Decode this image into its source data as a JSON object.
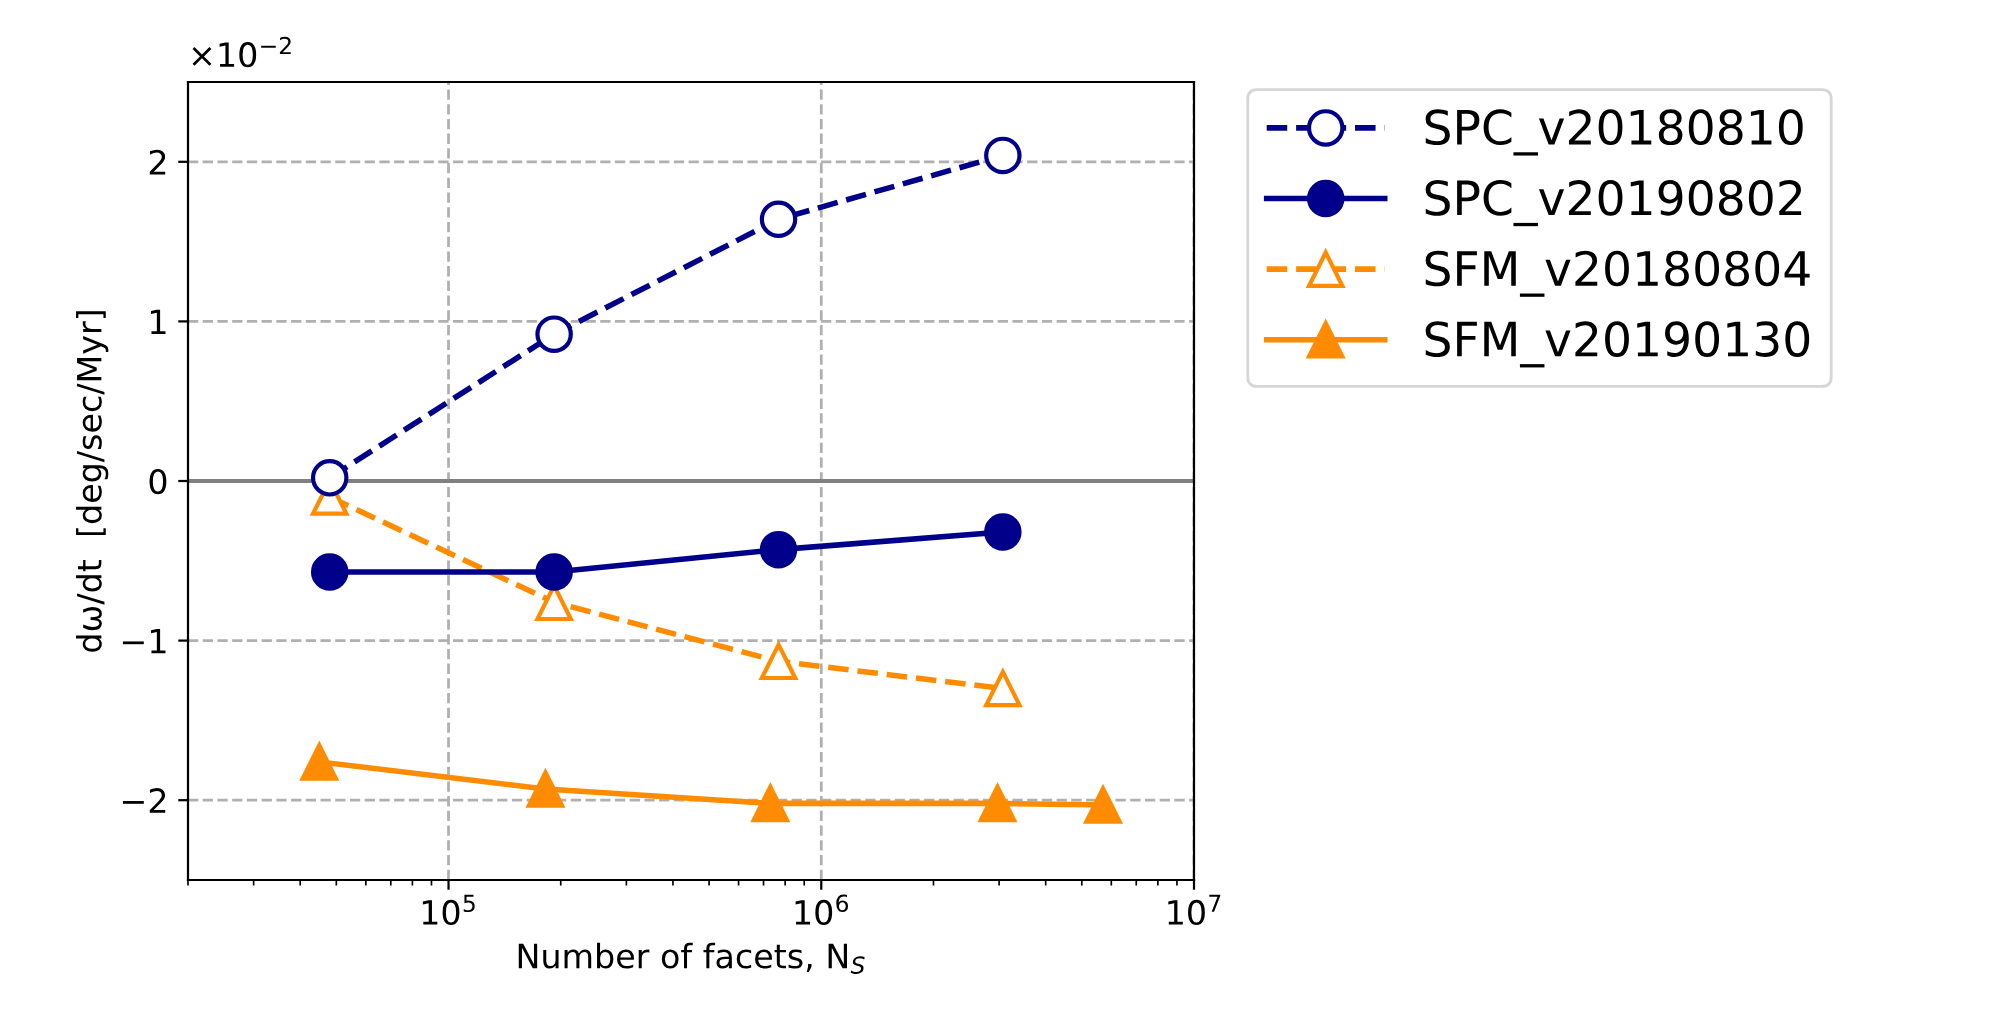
{
  "chart_data": {
    "type": "line",
    "xlabel": "Number of facets, N$_{S}$",
    "ylabel": "dω/dt  [deg/sec/Myr]",
    "log": "x",
    "grid": true,
    "legend": "top right",
    "xlim": [
      20000,
      10000000
    ],
    "xticks": [
      {
        "value": 100000,
        "label": "10$^{5}$"
      },
      {
        "value": 1000000,
        "label": "10$^{6}$"
      },
      {
        "value": 10000000,
        "label": "10$^{7}$"
      }
    ],
    "ylim": [
      -2.5,
      2.5
    ],
    "yticks": [
      {
        "value": -2,
        "label": "−2"
      },
      {
        "value": -1,
        "label": "−1"
      },
      0,
      1,
      2
    ],
    "annotations": [
      "×10$^{−2}$"
    ],
    "ref_lines": [
      {
        "axis": "y",
        "value": 0,
        "color": "#808080"
      }
    ],
    "series": [
      {
        "name": "SPC_v20180810",
        "color": "#00008b",
        "marker": "circle",
        "line_style": "dashed",
        "x": [
          48000,
          192000,
          768000,
          3070000
        ],
        "values": [
          0.02,
          0.92,
          1.64,
          2.04
        ]
      },
      {
        "name": "SPC_v20190802",
        "color": "#00008b",
        "marker": "circle",
        "line_style": "solid",
        "x": [
          48000,
          192000,
          768000,
          3070000
        ],
        "values": [
          -0.57,
          -0.57,
          -0.43,
          -0.32
        ]
      },
      {
        "name": "SFM_v20180804",
        "color": "#ff8c00",
        "marker": "triangle",
        "line_style": "dashed",
        "x": [
          48000,
          192000,
          768000,
          3070000
        ],
        "values": [
          -0.1,
          -0.76,
          -1.13,
          -1.3
        ]
      },
      {
        "name": "SFM_v20190130",
        "color": "#ff8c00",
        "marker": "triangle",
        "line_style": "solid",
        "x": [
          45000,
          182000,
          730000,
          2970000,
          5700000
        ],
        "values": [
          -1.76,
          -1.93,
          -2.02,
          -2.02,
          -2.03
        ]
      }
    ]
  }
}
